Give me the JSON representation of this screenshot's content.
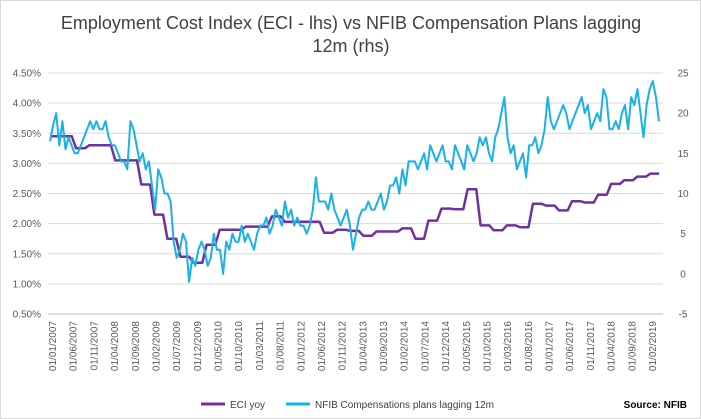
{
  "chart_data": {
    "type": "line",
    "title": "Employment Cost Index (ECI - lhs) vs NFIB Compensation Plans lagging 12m (rhs)",
    "title_lines": [
      "Employment Cost Index (ECI - lhs) vs NFIB Compensation Plans lagging",
      "12m (rhs)"
    ],
    "source": "Source: NFIB",
    "x_labels": [
      "01/01/2007",
      "01/06/2007",
      "01/11/2007",
      "01/04/2008",
      "01/09/2008",
      "01/02/2009",
      "01/07/2009",
      "01/12/2009",
      "01/05/2010",
      "01/10/2010",
      "01/03/2011",
      "01/08/2011",
      "01/01/2012",
      "01/06/2012",
      "01/11/2012",
      "01/04/2013",
      "01/09/2013",
      "01/02/2014",
      "01/07/2014",
      "01/12/2014",
      "01/05/2015",
      "01/10/2015",
      "01/03/2016",
      "01/08/2016",
      "01/01/2017",
      "01/06/2017",
      "01/11/2017",
      "01/04/2018",
      "01/09/2018",
      "01/02/2019"
    ],
    "y_left": {
      "min": 0.005,
      "max": 0.045,
      "ticks": [
        "0.50%",
        "1.00%",
        "1.50%",
        "2.00%",
        "2.50%",
        "3.00%",
        "3.50%",
        "4.00%",
        "4.50%"
      ]
    },
    "y_right": {
      "min": -5,
      "max": 25,
      "ticks": [
        "-5",
        "0",
        "5",
        "10",
        "15",
        "20",
        "25"
      ]
    },
    "series": [
      {
        "name": "ECI yoy",
        "axis": "left",
        "color": "#7030a0",
        "values": [
          0.0345,
          0.0345,
          0.0345,
          0.0345,
          0.0345,
          0.0345,
          0.0325,
          0.0325,
          0.0325,
          0.033,
          0.033,
          0.033,
          0.033,
          0.033,
          0.033,
          0.0305,
          0.0305,
          0.0305,
          0.0305,
          0.0305,
          0.0305,
          0.0265,
          0.0265,
          0.0265,
          0.0215,
          0.0215,
          0.0215,
          0.0175,
          0.0175,
          0.0175,
          0.0145,
          0.0145,
          0.0145,
          0.0135,
          0.0135,
          0.0135,
          0.0165,
          0.0165,
          0.0165,
          0.019,
          0.019,
          0.019,
          0.019,
          0.019,
          0.019,
          0.0195,
          0.0195,
          0.0195,
          0.0195,
          0.0195,
          0.0195,
          0.0212,
          0.0212,
          0.0212,
          0.0203,
          0.0203,
          0.0203,
          0.0203,
          0.0203,
          0.0203,
          0.0203,
          0.0203,
          0.0203,
          0.0185,
          0.0185,
          0.0185,
          0.019,
          0.019,
          0.019,
          0.0188,
          0.0188,
          0.0188,
          0.018,
          0.018,
          0.018,
          0.0187,
          0.0187,
          0.0187,
          0.0187,
          0.0187,
          0.0187,
          0.0192,
          0.0192,
          0.0192,
          0.0175,
          0.0175,
          0.0175,
          0.0205,
          0.0205,
          0.0205,
          0.0225,
          0.0225,
          0.0225,
          0.0224,
          0.0224,
          0.0224,
          0.0257,
          0.0257,
          0.0257,
          0.0197,
          0.0197,
          0.0197,
          0.0189,
          0.0189,
          0.0189,
          0.0197,
          0.0197,
          0.0197,
          0.0194,
          0.0194,
          0.0194,
          0.0233,
          0.0233,
          0.0233,
          0.023,
          0.023,
          0.023,
          0.0222,
          0.0222,
          0.0222,
          0.0237,
          0.0237,
          0.0237,
          0.0235,
          0.0235,
          0.0235,
          0.0248,
          0.0248,
          0.0248,
          0.0266,
          0.0266,
          0.0266,
          0.0272,
          0.0272,
          0.0272,
          0.0278,
          0.0278,
          0.0278,
          0.0283,
          0.0283,
          0.0283
        ]
      },
      {
        "name": "NFIB Compensations plans lagging 12m",
        "axis": "right",
        "color": "#1ab0e8",
        "values": [
          16.5,
          18.5,
          20,
          16,
          19,
          15.5,
          17,
          16,
          15,
          15,
          16,
          17,
          18,
          19,
          18,
          19,
          18,
          18,
          19,
          17,
          16,
          16,
          15,
          14,
          14,
          13,
          19,
          18,
          16,
          14,
          15,
          13,
          14,
          11,
          8,
          13,
          12,
          10,
          10,
          9,
          4,
          2,
          3,
          5,
          4,
          -1,
          2,
          1,
          3,
          4,
          3,
          1,
          2,
          5,
          3,
          3,
          0,
          4,
          3,
          5,
          4,
          4,
          6,
          4,
          5,
          4,
          3,
          5,
          6,
          6,
          7,
          5,
          6,
          8,
          7,
          6,
          9,
          7,
          8,
          6,
          7,
          6,
          6,
          5,
          6,
          8,
          12,
          9,
          9,
          9,
          8,
          10,
          8,
          7,
          6,
          7,
          8,
          6,
          3,
          5,
          7,
          8,
          8,
          9,
          8,
          8,
          9,
          10,
          8,
          9,
          11,
          11,
          12,
          10,
          13,
          11,
          14,
          14,
          14,
          13,
          14,
          15,
          13,
          16,
          15,
          14,
          15,
          16,
          14,
          14,
          13,
          16,
          15,
          14,
          13,
          16,
          15,
          14,
          15,
          17,
          16,
          17,
          15,
          14,
          17,
          18,
          20,
          22,
          17,
          15,
          16,
          13,
          14,
          15,
          12,
          16,
          16,
          17,
          15,
          16,
          18,
          22,
          19,
          18,
          19,
          20,
          21,
          20,
          18,
          19,
          20,
          21,
          22,
          20,
          21,
          18,
          19,
          20,
          19,
          23,
          22,
          18,
          18,
          19,
          18,
          20,
          21,
          18,
          22,
          21,
          23,
          20,
          17,
          21,
          23,
          24,
          22,
          19
        ]
      }
    ]
  }
}
